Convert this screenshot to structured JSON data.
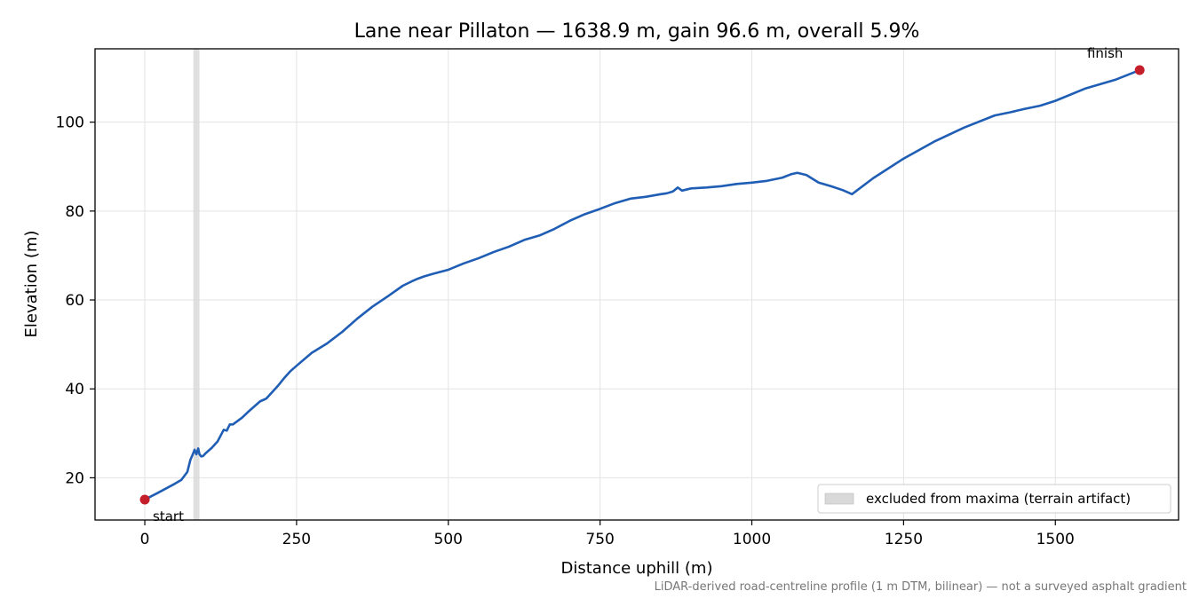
{
  "chart_data": {
    "type": "line",
    "title": "Lane near Pillaton — 1638.9 m, gain 96.6 m, overall 5.9%",
    "xlabel": "Distance uphill (m)",
    "ylabel": "Elevation (m)",
    "xlim": [
      -82,
      1703
    ],
    "ylim": [
      10.5,
      116.5
    ],
    "x_ticks": [
      0,
      250,
      500,
      750,
      1000,
      1250,
      1500
    ],
    "x_tick_labels": [
      "0",
      "250",
      "500",
      "750",
      "1000",
      "1250",
      "1500"
    ],
    "y_ticks": [
      20,
      40,
      60,
      80,
      100
    ],
    "y_tick_labels": [
      "20",
      "40",
      "60",
      "80",
      "100"
    ],
    "grid": true,
    "legend_placement": "lower-right",
    "colors": {
      "line": "#1f5eb4",
      "marker": "#c41e2a",
      "excluded_band": "#d9d9d9"
    },
    "series": [
      {
        "x": [
          0,
          20,
          50,
          60,
          70,
          75,
          80,
          82,
          85,
          88,
          90,
          93,
          96,
          100,
          110,
          120,
          125,
          130,
          135,
          140,
          145,
          150,
          160,
          170,
          180,
          190,
          195,
          200,
          210,
          220,
          230,
          240,
          250,
          275,
          300,
          325,
          350,
          375,
          400,
          425,
          440,
          450,
          460,
          475,
          500,
          525,
          550,
          575,
          600,
          625,
          650,
          675,
          700,
          725,
          750,
          775,
          800,
          825,
          850,
          860,
          870,
          878,
          885,
          900,
          925,
          950,
          975,
          1000,
          1025,
          1050,
          1065,
          1075,
          1090,
          1110,
          1130,
          1150,
          1165,
          1200,
          1250,
          1300,
          1350,
          1400,
          1425,
          1450,
          1475,
          1500,
          1550,
          1600,
          1638.9
        ],
        "y": [
          15.1,
          16.5,
          18.7,
          19.5,
          21.3,
          24.0,
          25.6,
          26.3,
          25.3,
          26.6,
          25.3,
          24.8,
          24.9,
          25.5,
          26.7,
          28.2,
          29.5,
          30.8,
          30.6,
          32.0,
          32.0,
          32.5,
          33.5,
          34.8,
          36.0,
          37.2,
          37.5,
          37.8,
          39.3,
          40.8,
          42.5,
          44.0,
          45.2,
          48.1,
          50.2,
          52.8,
          55.8,
          58.5,
          60.8,
          63.2,
          64.2,
          64.8,
          65.3,
          65.9,
          66.8,
          68.2,
          69.4,
          70.8,
          72.0,
          73.5,
          74.5,
          76.0,
          77.8,
          79.3,
          80.5,
          81.8,
          82.8,
          83.2,
          83.8,
          84.0,
          84.4,
          85.3,
          84.6,
          85.1,
          85.3,
          85.6,
          86.1,
          86.4,
          86.8,
          87.5,
          88.3,
          88.6,
          88.1,
          86.4,
          85.6,
          84.7,
          83.8,
          87.4,
          91.8,
          95.6,
          98.8,
          101.5,
          102.2,
          103.0,
          103.7,
          104.8,
          107.6,
          109.6,
          111.7
        ]
      }
    ],
    "excluded_band": [
      80,
      90
    ],
    "annotations": {
      "start": "start",
      "finish": "finish"
    },
    "legend": {
      "label": "excluded from maxima (terrain artifact)"
    },
    "footnote": "LiDAR-derived road-centreline profile (1 m DTM, bilinear) — not a surveyed asphalt gradient"
  }
}
